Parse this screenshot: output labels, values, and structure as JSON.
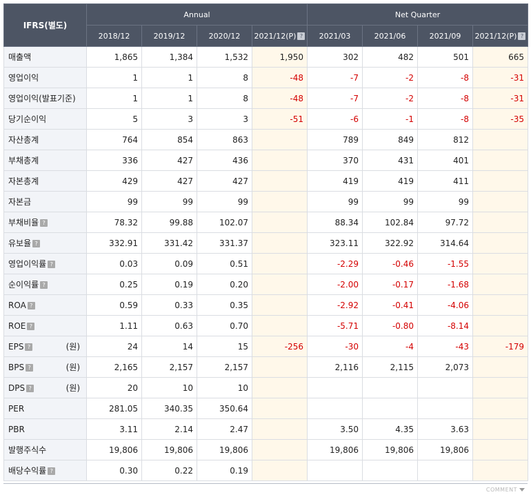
{
  "header": {
    "corner": "IFRS(별도)",
    "annual_label": "Annual",
    "quarter_label": "Net Quarter",
    "periods": [
      "2018/12",
      "2019/12",
      "2020/12",
      "2021/12(P)",
      "2021/03",
      "2021/06",
      "2021/09",
      "2021/12(P)"
    ]
  },
  "rows": [
    {
      "label": "매출액",
      "values": [
        "1,865",
        "1,384",
        "1,532",
        "1,950",
        "302",
        "482",
        "501",
        "665"
      ]
    },
    {
      "label": "영업이익",
      "values": [
        "1",
        "1",
        "8",
        "-48",
        "-7",
        "-2",
        "-8",
        "-31"
      ]
    },
    {
      "label": "영업이익(발표기준)",
      "values": [
        "1",
        "1",
        "8",
        "-48",
        "-7",
        "-2",
        "-8",
        "-31"
      ]
    },
    {
      "label": "당기순이익",
      "values": [
        "5",
        "3",
        "3",
        "-51",
        "-6",
        "-1",
        "-8",
        "-35"
      ]
    },
    {
      "label": "자산총계",
      "values": [
        "764",
        "854",
        "863",
        "",
        "789",
        "849",
        "812",
        ""
      ]
    },
    {
      "label": "부채총계",
      "values": [
        "336",
        "427",
        "436",
        "",
        "370",
        "431",
        "401",
        ""
      ]
    },
    {
      "label": "자본총계",
      "values": [
        "429",
        "427",
        "427",
        "",
        "419",
        "419",
        "411",
        ""
      ]
    },
    {
      "label": "자본금",
      "values": [
        "99",
        "99",
        "99",
        "",
        "99",
        "99",
        "99",
        ""
      ]
    },
    {
      "label": "부채비율",
      "values": [
        "78.32",
        "99.88",
        "102.07",
        "",
        "88.34",
        "102.84",
        "97.72",
        ""
      ]
    },
    {
      "label": "유보율",
      "values": [
        "332.91",
        "331.42",
        "331.37",
        "",
        "323.11",
        "322.92",
        "314.64",
        ""
      ]
    },
    {
      "label": "영업이익률",
      "values": [
        "0.03",
        "0.09",
        "0.51",
        "",
        "-2.29",
        "-0.46",
        "-1.55",
        ""
      ]
    },
    {
      "label": "순이익률",
      "values": [
        "0.25",
        "0.19",
        "0.20",
        "",
        "-2.00",
        "-0.17",
        "-1.68",
        ""
      ]
    },
    {
      "label": "ROA",
      "values": [
        "0.59",
        "0.33",
        "0.35",
        "",
        "-2.92",
        "-0.41",
        "-4.06",
        ""
      ]
    },
    {
      "label": "ROE",
      "values": [
        "1.11",
        "0.63",
        "0.70",
        "",
        "-5.71",
        "-0.80",
        "-8.14",
        ""
      ]
    },
    {
      "label": "EPS",
      "unit": "(원)",
      "values": [
        "24",
        "14",
        "15",
        "-256",
        "-30",
        "-4",
        "-43",
        "-179"
      ]
    },
    {
      "label": "BPS",
      "unit": "(원)",
      "values": [
        "2,165",
        "2,157",
        "2,157",
        "",
        "2,116",
        "2,115",
        "2,073",
        ""
      ]
    },
    {
      "label": "DPS",
      "unit": "(원)",
      "values": [
        "20",
        "10",
        "10",
        "",
        "",
        "",
        "",
        ""
      ]
    },
    {
      "label": "PER",
      "values": [
        "281.05",
        "340.35",
        "350.64",
        "",
        "",
        "",
        "",
        ""
      ]
    },
    {
      "label": "PBR",
      "values": [
        "3.11",
        "2.14",
        "2.47",
        "",
        "3.50",
        "4.35",
        "3.63",
        ""
      ]
    },
    {
      "label": "발행주식수",
      "values": [
        "19,806",
        "19,806",
        "19,806",
        "",
        "19,806",
        "19,806",
        "19,806",
        ""
      ]
    },
    {
      "label": "배당수익률",
      "values": [
        "0.30",
        "0.22",
        "0.19",
        "",
        "",
        "",
        "",
        ""
      ]
    }
  ],
  "help_icon_glyph": "?",
  "footer": {
    "comment_label": "COMMENT"
  },
  "colors": {
    "header_bg": "#4d5564",
    "label_bg": "#f2f4f8",
    "estimate_bg": "#fff8ea",
    "negative": "#d40000"
  }
}
